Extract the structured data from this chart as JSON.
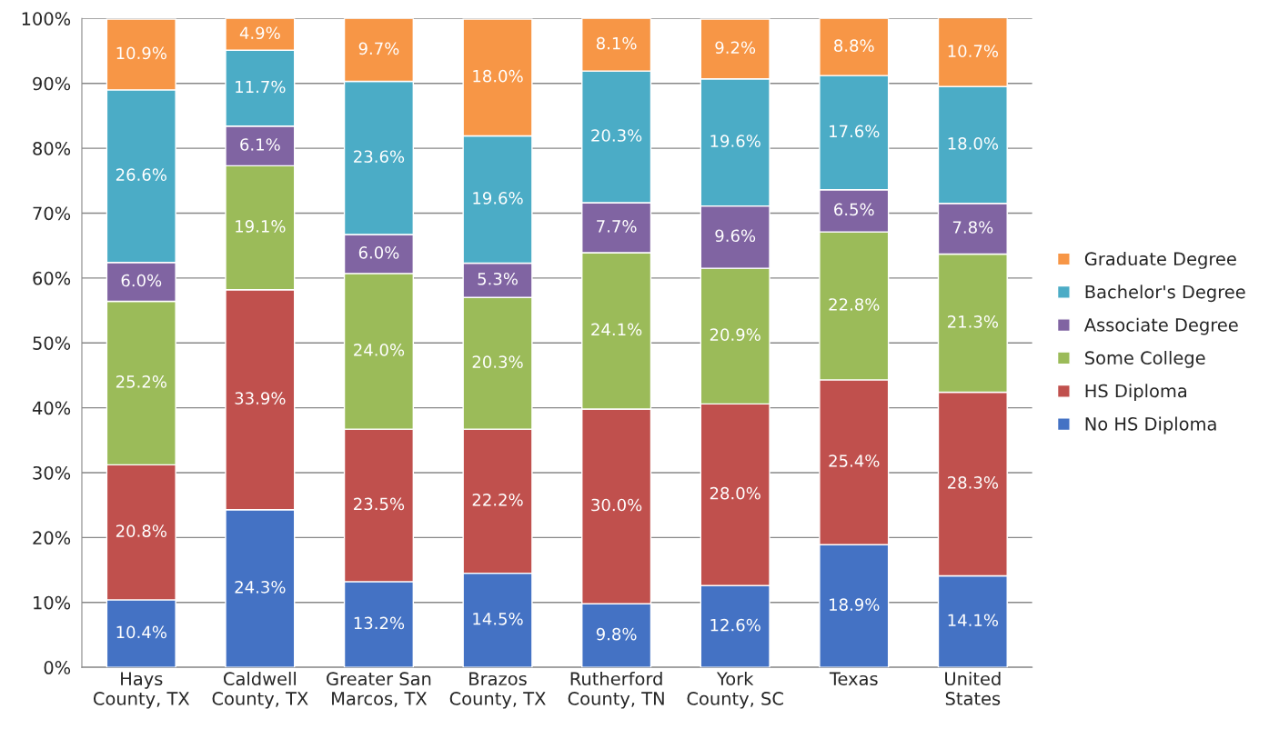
{
  "chart_data": {
    "type": "bar",
    "stacked": true,
    "categories": [
      "Hays\nCounty, TX",
      "Caldwell\nCounty, TX",
      "Greater San\nMarcos, TX",
      "Brazos\nCounty, TX",
      "Rutherford\nCounty, TN",
      "York\nCounty, SC",
      "Texas",
      "United\nStates"
    ],
    "series": [
      {
        "name": "No HS Diploma",
        "color": "#4472c4",
        "values": [
          10.4,
          24.3,
          13.2,
          14.5,
          9.8,
          12.6,
          18.9,
          14.1
        ],
        "value_labels": [
          "10.4%",
          "24.3%",
          "13.2%",
          "14.5%",
          "9.8%",
          "12.6%",
          "18.9%",
          "14.1%"
        ]
      },
      {
        "name": "HS Diploma",
        "color": "#c0504d",
        "values": [
          20.8,
          33.9,
          23.5,
          22.2,
          30.0,
          28.0,
          25.4,
          28.3
        ],
        "value_labels": [
          "20.8%",
          "33.9%",
          "23.5%",
          "22.2%",
          "30.0%",
          "28.0%",
          "25.4%",
          "28.3%"
        ]
      },
      {
        "name": "Some College",
        "color": "#9bbb59",
        "values": [
          25.2,
          19.1,
          24.0,
          20.3,
          24.1,
          20.9,
          22.8,
          21.3
        ],
        "value_labels": [
          "25.2%",
          "19.1%",
          "24.0%",
          "20.3%",
          "24.1%",
          "20.9%",
          "22.8%",
          "21.3%"
        ]
      },
      {
        "name": "Associate Degree",
        "color": "#8064a2",
        "values": [
          6.0,
          6.1,
          6.0,
          5.3,
          7.7,
          9.6,
          6.5,
          7.8
        ],
        "value_labels": [
          "6.0%",
          "6.1%",
          "6.0%",
          "5.3%",
          "7.7%",
          "9.6%",
          "6.5%",
          "7.8%"
        ]
      },
      {
        "name": "Bachelor's Degree",
        "color": "#4bacc6",
        "values": [
          26.6,
          11.7,
          23.6,
          19.6,
          20.3,
          19.6,
          17.6,
          18.0
        ],
        "value_labels": [
          "26.6%",
          "11.7%",
          "23.6%",
          "19.6%",
          "20.3%",
          "19.6%",
          "17.6%",
          "18.0%"
        ]
      },
      {
        "name": "Graduate Degree",
        "color": "#f79646",
        "values": [
          10.9,
          4.9,
          9.7,
          18.0,
          8.1,
          9.2,
          8.8,
          10.7
        ],
        "value_labels": [
          "10.9%",
          "4.9%",
          "9.7%",
          "18.0%",
          "8.1%",
          "9.2%",
          "8.8%",
          "10.7%"
        ]
      }
    ],
    "ylim": [
      0,
      100
    ],
    "yticks": [
      {
        "value": 0,
        "label": "0%"
      },
      {
        "value": 10,
        "label": "10%"
      },
      {
        "value": 20,
        "label": "20%"
      },
      {
        "value": 30,
        "label": "30%"
      },
      {
        "value": 40,
        "label": "40%"
      },
      {
        "value": 50,
        "label": "50%"
      },
      {
        "value": 60,
        "label": "60%"
      },
      {
        "value": 70,
        "label": "70%"
      },
      {
        "value": 80,
        "label": "80%"
      },
      {
        "value": 90,
        "label": "90%"
      },
      {
        "value": 100,
        "label": "100%"
      }
    ],
    "grid": "y",
    "legend": "right"
  }
}
